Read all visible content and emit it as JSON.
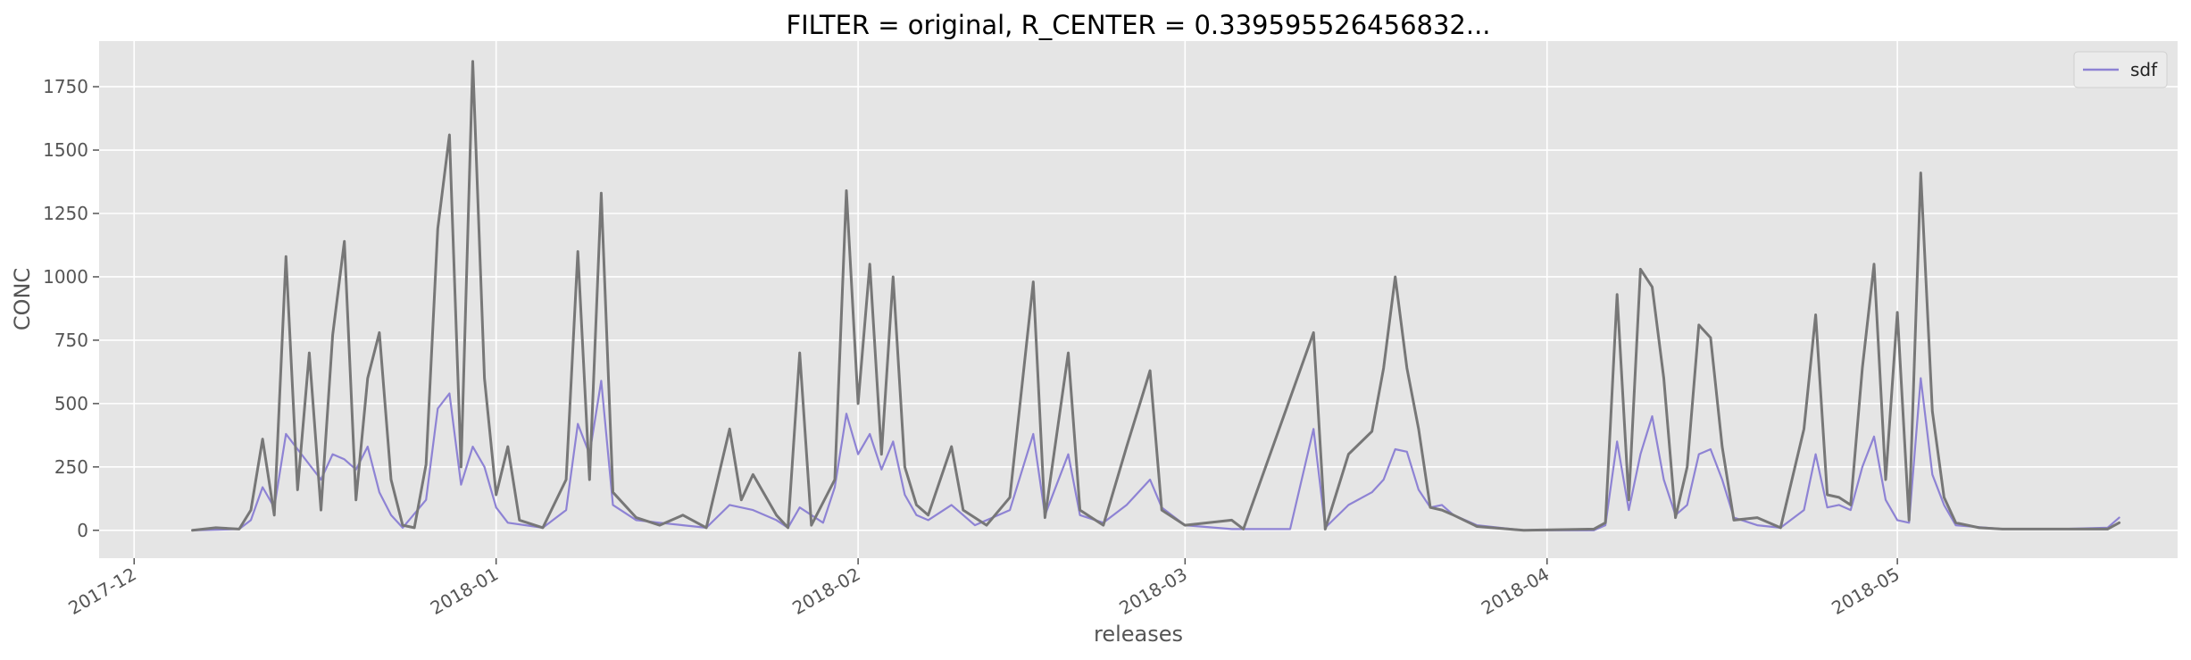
{
  "chart_data": {
    "type": "line",
    "title": "FILTER = original, R_CENTER = 0.339595526456832...",
    "xlabel": "releases",
    "ylabel": "CONC",
    "xlim": [
      "2017-11-28",
      "2018-05-25"
    ],
    "ylim": [
      -110,
      1930
    ],
    "x_ticks": [
      "2017-12",
      "2018-01",
      "2018-02",
      "2018-03",
      "2018-04",
      "2018-05"
    ],
    "y_ticks": [
      0,
      250,
      500,
      750,
      1000,
      1250,
      1500,
      1750
    ],
    "grid": true,
    "legend": {
      "position": "upper right",
      "entries": [
        "sdf"
      ]
    },
    "colors": {
      "sdf": "#8e83d4",
      "overlay": "#777777",
      "plot_bg": "#e5e5e5",
      "grid": "#ffffff"
    },
    "series": [
      {
        "name": "sdf",
        "points": [
          [
            "2017-12-06",
            0
          ],
          [
            "2017-12-10",
            5
          ],
          [
            "2017-12-11",
            40
          ],
          [
            "2017-12-12",
            170
          ],
          [
            "2017-12-13",
            90
          ],
          [
            "2017-12-14",
            380
          ],
          [
            "2017-12-15",
            320
          ],
          [
            "2017-12-16",
            260
          ],
          [
            "2017-12-17",
            200
          ],
          [
            "2017-12-18",
            300
          ],
          [
            "2017-12-19",
            280
          ],
          [
            "2017-12-20",
            240
          ],
          [
            "2017-12-21",
            330
          ],
          [
            "2017-12-22",
            150
          ],
          [
            "2017-12-23",
            60
          ],
          [
            "2017-12-24",
            10
          ],
          [
            "2017-12-26",
            120
          ],
          [
            "2017-12-27",
            480
          ],
          [
            "2017-12-28",
            540
          ],
          [
            "2017-12-29",
            180
          ],
          [
            "2017-12-30",
            330
          ],
          [
            "2017-12-31",
            250
          ],
          [
            "2018-01-01",
            90
          ],
          [
            "2018-01-02",
            30
          ],
          [
            "2018-01-05",
            10
          ],
          [
            "2018-01-07",
            80
          ],
          [
            "2018-01-08",
            420
          ],
          [
            "2018-01-09",
            300
          ],
          [
            "2018-01-10",
            590
          ],
          [
            "2018-01-11",
            100
          ],
          [
            "2018-01-13",
            40
          ],
          [
            "2018-01-15",
            30
          ],
          [
            "2018-01-17",
            20
          ],
          [
            "2018-01-19",
            10
          ],
          [
            "2018-01-21",
            100
          ],
          [
            "2018-01-23",
            80
          ],
          [
            "2018-01-25",
            40
          ],
          [
            "2018-01-26",
            10
          ],
          [
            "2018-01-27",
            90
          ],
          [
            "2018-01-29",
            30
          ],
          [
            "2018-01-30",
            170
          ],
          [
            "2018-01-31",
            460
          ],
          [
            "2018-02-01",
            300
          ],
          [
            "2018-02-02",
            380
          ],
          [
            "2018-02-03",
            240
          ],
          [
            "2018-02-04",
            350
          ],
          [
            "2018-02-05",
            140
          ],
          [
            "2018-02-06",
            60
          ],
          [
            "2018-02-07",
            40
          ],
          [
            "2018-02-09",
            100
          ],
          [
            "2018-02-11",
            20
          ],
          [
            "2018-02-14",
            80
          ],
          [
            "2018-02-16",
            380
          ],
          [
            "2018-02-17",
            60
          ],
          [
            "2018-02-19",
            300
          ],
          [
            "2018-02-20",
            60
          ],
          [
            "2018-02-22",
            30
          ],
          [
            "2018-02-24",
            100
          ],
          [
            "2018-02-26",
            200
          ],
          [
            "2018-02-27",
            90
          ],
          [
            "2018-03-01",
            20
          ],
          [
            "2018-03-05",
            5
          ],
          [
            "2018-03-10",
            5
          ],
          [
            "2018-03-12",
            400
          ],
          [
            "2018-03-13",
            10
          ],
          [
            "2018-03-15",
            100
          ],
          [
            "2018-03-17",
            150
          ],
          [
            "2018-03-18",
            200
          ],
          [
            "2018-03-19",
            320
          ],
          [
            "2018-03-20",
            310
          ],
          [
            "2018-03-21",
            160
          ],
          [
            "2018-03-22",
            90
          ],
          [
            "2018-03-23",
            100
          ],
          [
            "2018-03-24",
            60
          ],
          [
            "2018-03-26",
            20
          ],
          [
            "2018-03-30",
            0
          ],
          [
            "2018-04-05",
            0
          ],
          [
            "2018-04-06",
            20
          ],
          [
            "2018-04-07",
            350
          ],
          [
            "2018-04-08",
            80
          ],
          [
            "2018-04-09",
            300
          ],
          [
            "2018-04-10",
            450
          ],
          [
            "2018-04-11",
            200
          ],
          [
            "2018-04-12",
            60
          ],
          [
            "2018-04-13",
            100
          ],
          [
            "2018-04-14",
            300
          ],
          [
            "2018-04-15",
            320
          ],
          [
            "2018-04-16",
            200
          ],
          [
            "2018-04-17",
            50
          ],
          [
            "2018-04-19",
            20
          ],
          [
            "2018-04-21",
            10
          ],
          [
            "2018-04-23",
            80
          ],
          [
            "2018-04-24",
            300
          ],
          [
            "2018-04-25",
            90
          ],
          [
            "2018-04-26",
            100
          ],
          [
            "2018-04-27",
            80
          ],
          [
            "2018-04-28",
            250
          ],
          [
            "2018-04-29",
            370
          ],
          [
            "2018-04-30",
            120
          ],
          [
            "2018-05-01",
            40
          ],
          [
            "2018-05-02",
            30
          ],
          [
            "2018-05-03",
            600
          ],
          [
            "2018-05-04",
            220
          ],
          [
            "2018-05-05",
            100
          ],
          [
            "2018-05-06",
            20
          ],
          [
            "2018-05-10",
            5
          ],
          [
            "2018-05-15",
            5
          ],
          [
            "2018-05-19",
            10
          ],
          [
            "2018-05-20",
            50
          ]
        ]
      },
      {
        "name": "",
        "points": [
          [
            "2017-12-06",
            0
          ],
          [
            "2017-12-08",
            10
          ],
          [
            "2017-12-10",
            5
          ],
          [
            "2017-12-11",
            80
          ],
          [
            "2017-12-12",
            360
          ],
          [
            "2017-12-13",
            60
          ],
          [
            "2017-12-14",
            1080
          ],
          [
            "2017-12-15",
            160
          ],
          [
            "2017-12-16",
            700
          ],
          [
            "2017-12-17",
            80
          ],
          [
            "2017-12-18",
            770
          ],
          [
            "2017-12-19",
            1140
          ],
          [
            "2017-12-20",
            120
          ],
          [
            "2017-12-21",
            600
          ],
          [
            "2017-12-22",
            780
          ],
          [
            "2017-12-23",
            200
          ],
          [
            "2017-12-24",
            20
          ],
          [
            "2017-12-25",
            10
          ],
          [
            "2017-12-26",
            260
          ],
          [
            "2017-12-27",
            1190
          ],
          [
            "2017-12-28",
            1560
          ],
          [
            "2017-12-29",
            250
          ],
          [
            "2017-12-30",
            1850
          ],
          [
            "2017-12-31",
            600
          ],
          [
            "2018-01-01",
            140
          ],
          [
            "2018-01-02",
            330
          ],
          [
            "2018-01-03",
            40
          ],
          [
            "2018-01-05",
            10
          ],
          [
            "2018-01-07",
            200
          ],
          [
            "2018-01-08",
            1100
          ],
          [
            "2018-01-09",
            200
          ],
          [
            "2018-01-10",
            1330
          ],
          [
            "2018-01-11",
            150
          ],
          [
            "2018-01-13",
            50
          ],
          [
            "2018-01-15",
            20
          ],
          [
            "2018-01-17",
            60
          ],
          [
            "2018-01-19",
            10
          ],
          [
            "2018-01-21",
            400
          ],
          [
            "2018-01-22",
            120
          ],
          [
            "2018-01-23",
            220
          ],
          [
            "2018-01-25",
            60
          ],
          [
            "2018-01-26",
            10
          ],
          [
            "2018-01-27",
            700
          ],
          [
            "2018-01-28",
            20
          ],
          [
            "2018-01-30",
            200
          ],
          [
            "2018-01-31",
            1340
          ],
          [
            "2018-02-01",
            500
          ],
          [
            "2018-02-02",
            1050
          ],
          [
            "2018-02-03",
            300
          ],
          [
            "2018-02-04",
            1000
          ],
          [
            "2018-02-05",
            250
          ],
          [
            "2018-02-06",
            100
          ],
          [
            "2018-02-07",
            60
          ],
          [
            "2018-02-09",
            330
          ],
          [
            "2018-02-10",
            80
          ],
          [
            "2018-02-12",
            20
          ],
          [
            "2018-02-14",
            130
          ],
          [
            "2018-02-16",
            980
          ],
          [
            "2018-02-17",
            50
          ],
          [
            "2018-02-19",
            700
          ],
          [
            "2018-02-20",
            80
          ],
          [
            "2018-02-22",
            20
          ],
          [
            "2018-02-24",
            330
          ],
          [
            "2018-02-26",
            630
          ],
          [
            "2018-02-27",
            80
          ],
          [
            "2018-03-01",
            20
          ],
          [
            "2018-03-05",
            40
          ],
          [
            "2018-03-06",
            5
          ],
          [
            "2018-03-12",
            780
          ],
          [
            "2018-03-13",
            5
          ],
          [
            "2018-03-15",
            300
          ],
          [
            "2018-03-17",
            390
          ],
          [
            "2018-03-18",
            640
          ],
          [
            "2018-03-19",
            1000
          ],
          [
            "2018-03-20",
            640
          ],
          [
            "2018-03-21",
            400
          ],
          [
            "2018-03-22",
            90
          ],
          [
            "2018-03-23",
            80
          ],
          [
            "2018-03-24",
            60
          ],
          [
            "2018-03-26",
            15
          ],
          [
            "2018-03-30",
            0
          ],
          [
            "2018-04-05",
            5
          ],
          [
            "2018-04-06",
            30
          ],
          [
            "2018-04-07",
            930
          ],
          [
            "2018-04-08",
            120
          ],
          [
            "2018-04-09",
            1030
          ],
          [
            "2018-04-10",
            960
          ],
          [
            "2018-04-11",
            600
          ],
          [
            "2018-04-12",
            50
          ],
          [
            "2018-04-13",
            250
          ],
          [
            "2018-04-14",
            810
          ],
          [
            "2018-04-15",
            760
          ],
          [
            "2018-04-16",
            330
          ],
          [
            "2018-04-17",
            40
          ],
          [
            "2018-04-19",
            50
          ],
          [
            "2018-04-21",
            10
          ],
          [
            "2018-04-23",
            400
          ],
          [
            "2018-04-24",
            850
          ],
          [
            "2018-04-25",
            140
          ],
          [
            "2018-04-26",
            130
          ],
          [
            "2018-04-27",
            100
          ],
          [
            "2018-04-28",
            640
          ],
          [
            "2018-04-29",
            1050
          ],
          [
            "2018-04-30",
            200
          ],
          [
            "2018-05-01",
            860
          ],
          [
            "2018-05-02",
            40
          ],
          [
            "2018-05-03",
            1410
          ],
          [
            "2018-05-04",
            470
          ],
          [
            "2018-05-05",
            130
          ],
          [
            "2018-05-06",
            30
          ],
          [
            "2018-05-08",
            10
          ],
          [
            "2018-05-10",
            5
          ],
          [
            "2018-05-15",
            5
          ],
          [
            "2018-05-19",
            5
          ],
          [
            "2018-05-20",
            30
          ]
        ]
      }
    ]
  }
}
